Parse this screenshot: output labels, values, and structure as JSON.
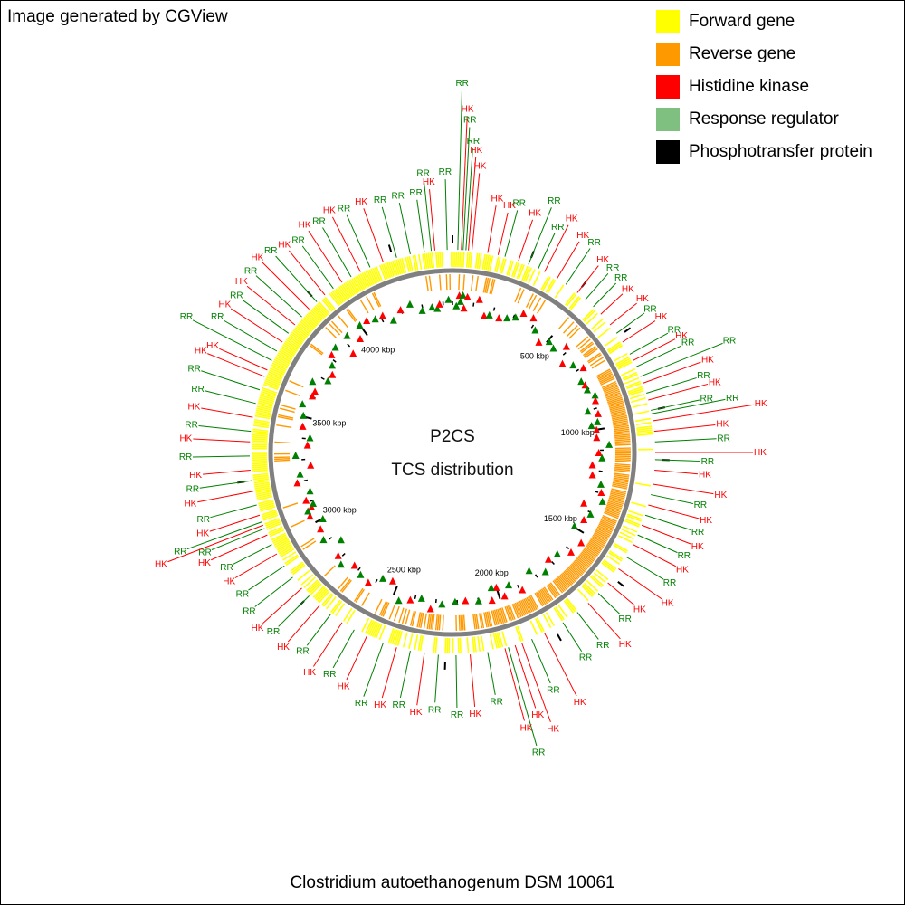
{
  "header": {
    "credit": "Image generated by CGView"
  },
  "legend": [
    {
      "label": "Forward gene",
      "color": "#ffff00"
    },
    {
      "label": "Reverse gene",
      "color": "#ff9900"
    },
    {
      "label": "Histidine kinase",
      "color": "#ff0000"
    },
    {
      "label": "Response regulator",
      "color": "#7fbf7f"
    },
    {
      "label": "Phosphotransfer protein",
      "color": "#000000"
    }
  ],
  "center": {
    "line1": "P2CS",
    "line2": "TCS distribution"
  },
  "organism": "Clostridium autoethanogenum DSM 10061",
  "genome": {
    "ticks": [
      "500 kbp",
      "1000 kbp",
      "1500 kbp",
      "2000 kbp",
      "2500 kbp",
      "3000 kbp",
      "3500 kbp",
      "4000 kbp"
    ],
    "colors": {
      "forward": "#ffff00",
      "reverse": "#ff9900",
      "hk": "#ff0000",
      "rr": "#008000",
      "ring": "#808080"
    },
    "feature_labels": [
      {
        "t": "RR",
        "a": 1.5,
        "r": 408
      },
      {
        "t": "HK",
        "a": 2.5,
        "r": 380
      },
      {
        "t": "RR",
        "a": 3.0,
        "r": 368
      },
      {
        "t": "RR",
        "a": 3.8,
        "r": 345
      },
      {
        "t": "HK",
        "a": 4.5,
        "r": 335
      },
      {
        "t": "HK",
        "a": 5.5,
        "r": 318
      },
      {
        "t": "RR",
        "a": -1.5,
        "r": 310
      },
      {
        "t": "HK",
        "a": 10,
        "r": 285
      },
      {
        "t": "RR",
        "a": -6,
        "r": 310
      },
      {
        "t": "HK",
        "a": 13,
        "r": 280
      },
      {
        "t": "RR",
        "a": 15,
        "r": 285
      },
      {
        "t": "HK",
        "a": 19,
        "r": 280
      },
      {
        "t": "RR",
        "a": 22,
        "r": 300
      },
      {
        "t": "RR",
        "a": 25,
        "r": 275
      },
      {
        "t": "HK",
        "a": 27,
        "r": 290
      },
      {
        "t": "HK",
        "a": 31,
        "r": 280
      },
      {
        "t": "RR",
        "a": 34,
        "r": 280
      },
      {
        "t": "HK",
        "a": 38,
        "r": 270
      },
      {
        "t": "RR",
        "a": 41,
        "r": 270
      },
      {
        "t": "RR",
        "a": 44,
        "r": 268
      },
      {
        "t": "HK",
        "a": 47,
        "r": 265
      },
      {
        "t": "HK",
        "a": 51,
        "r": 270
      },
      {
        "t": "RR",
        "a": 54,
        "r": 270
      },
      {
        "t": "HK",
        "a": 57,
        "r": 275
      },
      {
        "t": "RR",
        "a": 61,
        "r": 280
      },
      {
        "t": "HK",
        "a": 63,
        "r": 284
      },
      {
        "t": "RR",
        "a": 65,
        "r": 287
      },
      {
        "t": "RR",
        "a": 68,
        "r": 330
      },
      {
        "t": "HK",
        "a": 70,
        "r": 300
      },
      {
        "t": "RR",
        "a": 73,
        "r": 290
      },
      {
        "t": "HK",
        "a": 75,
        "r": 300
      },
      {
        "t": "RR",
        "a": 78,
        "r": 287
      },
      {
        "t": "RR",
        "a": 79,
        "r": 315
      },
      {
        "t": "HK",
        "a": 81,
        "r": 345
      },
      {
        "t": "HK",
        "a": 84,
        "r": 300
      },
      {
        "t": "RR",
        "a": 87,
        "r": 300
      },
      {
        "t": "HK",
        "a": 90,
        "r": 340
      },
      {
        "t": "RR",
        "a": 92,
        "r": 282
      },
      {
        "t": "HK",
        "a": 95,
        "r": 280
      },
      {
        "t": "HK",
        "a": 99,
        "r": 300
      },
      {
        "t": "RR",
        "a": 102,
        "r": 280
      },
      {
        "t": "HK",
        "a": 105,
        "r": 290
      },
      {
        "t": "RR",
        "a": 108,
        "r": 285
      },
      {
        "t": "HK",
        "a": 111,
        "r": 290
      },
      {
        "t": "RR",
        "a": 114,
        "r": 280
      },
      {
        "t": "HK",
        "a": 117,
        "r": 285
      },
      {
        "t": "RR",
        "a": 121,
        "r": 280
      },
      {
        "t": "HK",
        "a": 125,
        "r": 290
      },
      {
        "t": "HK",
        "a": 130,
        "r": 270
      },
      {
        "t": "RR",
        "a": 134,
        "r": 265
      },
      {
        "t": "HK",
        "a": 138,
        "r": 285
      },
      {
        "t": "RR",
        "a": 142,
        "r": 270
      },
      {
        "t": "RR",
        "a": 147,
        "r": 270
      },
      {
        "t": "HK",
        "a": 153,
        "r": 310
      },
      {
        "t": "RR",
        "a": 157,
        "r": 285
      },
      {
        "t": "HK",
        "a": 160,
        "r": 325
      },
      {
        "t": "HK",
        "a": 162,
        "r": 305
      },
      {
        "t": "RR",
        "a": 164,
        "r": 345
      },
      {
        "t": "HK",
        "a": 165,
        "r": 315
      },
      {
        "t": "RR",
        "a": 170,
        "r": 280
      },
      {
        "t": "HK",
        "a": 175,
        "r": 290
      },
      {
        "t": "RR",
        "a": 179,
        "r": 290
      },
      {
        "t": "RR",
        "a": 184,
        "r": 285
      },
      {
        "t": "HK",
        "a": 188,
        "r": 290
      },
      {
        "t": "RR",
        "a": 192,
        "r": 285
      },
      {
        "t": "HK",
        "a": 196,
        "r": 290
      },
      {
        "t": "RR",
        "a": 200,
        "r": 295
      },
      {
        "t": "HK",
        "a": 205,
        "r": 285
      },
      {
        "t": "RR",
        "a": 209,
        "r": 280
      },
      {
        "t": "HK",
        "a": 213,
        "r": 290
      },
      {
        "t": "RR",
        "a": 217,
        "r": 275
      },
      {
        "t": "HK",
        "a": 221,
        "r": 285
      },
      {
        "t": "RR",
        "a": 225,
        "r": 280
      },
      {
        "t": "HK",
        "a": 228,
        "r": 290
      },
      {
        "t": "RR",
        "a": 232,
        "r": 285
      },
      {
        "t": "RR",
        "a": 236,
        "r": 280
      },
      {
        "t": "HK",
        "a": 240,
        "r": 285
      },
      {
        "t": "RR",
        "a": 243,
        "r": 280
      },
      {
        "t": "HK",
        "a": 246,
        "r": 300
      },
      {
        "t": "RR",
        "a": 248,
        "r": 295
      },
      {
        "t": "HK",
        "a": 249,
        "r": 345
      },
      {
        "t": "RR",
        "a": 250,
        "r": 320
      },
      {
        "t": "HK",
        "a": 252,
        "r": 290
      },
      {
        "t": "RR",
        "a": 255,
        "r": 285
      },
      {
        "t": "HK",
        "a": 259,
        "r": 295
      },
      {
        "t": "RR",
        "a": 262,
        "r": 290
      },
      {
        "t": "HK",
        "a": 265,
        "r": 285
      },
      {
        "t": "RR",
        "a": 269,
        "r": 295
      },
      {
        "t": "HK",
        "a": 273,
        "r": 295
      },
      {
        "t": "RR",
        "a": 276,
        "r": 290
      },
      {
        "t": "HK",
        "a": 280,
        "r": 290
      },
      {
        "t": "RR",
        "a": 284,
        "r": 290
      },
      {
        "t": "RR",
        "a": 288,
        "r": 300
      },
      {
        "t": "HK",
        "a": 292,
        "r": 300
      },
      {
        "t": "HK",
        "a": 294,
        "r": 290
      },
      {
        "t": "RR",
        "a": 297,
        "r": 330
      },
      {
        "t": "RR",
        "a": 300,
        "r": 300
      },
      {
        "t": "HK",
        "a": 303,
        "r": 300
      },
      {
        "t": "RR",
        "a": 306,
        "r": 295
      },
      {
        "t": "HK",
        "a": 309,
        "r": 300
      },
      {
        "t": "RR",
        "a": 312,
        "r": 300
      },
      {
        "t": "HK",
        "a": 315,
        "r": 305
      },
      {
        "t": "RR",
        "a": 318,
        "r": 300
      },
      {
        "t": "HK",
        "a": 321,
        "r": 295
      },
      {
        "t": "RR",
        "a": 324,
        "r": 290
      },
      {
        "t": "HK",
        "a": 327,
        "r": 300
      },
      {
        "t": "RR",
        "a": 330,
        "r": 295
      },
      {
        "t": "HK",
        "a": 333,
        "r": 300
      },
      {
        "t": "RR",
        "a": 336,
        "r": 295
      },
      {
        "t": "HK",
        "a": 340,
        "r": 295
      },
      {
        "t": "RR",
        "a": 344,
        "r": 290
      },
      {
        "t": "RR",
        "a": 348,
        "r": 290
      },
      {
        "t": "RR",
        "a": 352,
        "r": 290
      },
      {
        "t": "HK",
        "a": 355,
        "r": 300
      }
    ]
  }
}
